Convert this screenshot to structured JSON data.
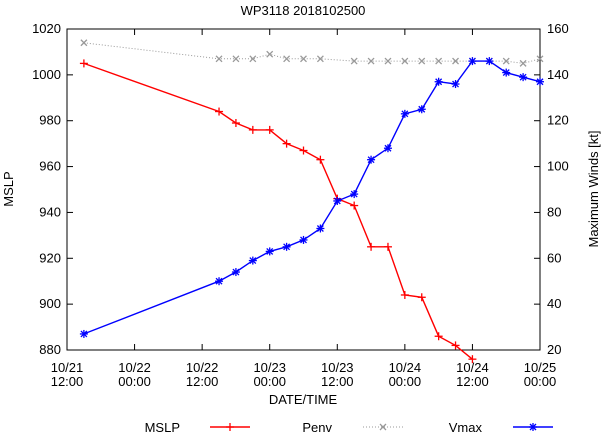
{
  "chart_data": {
    "type": "line",
    "title": "WP3118 2018102500",
    "xlabel": "DATE/TIME",
    "ylabel_left": "MSLP",
    "ylabel_right": "Maximum Winds [kt]",
    "x_ticks": [
      {
        "t": 0,
        "line1": "10/21",
        "line2": "12:00"
      },
      {
        "t": 12,
        "line1": "10/22",
        "line2": "00:00"
      },
      {
        "t": 24,
        "line1": "10/22",
        "line2": "12:00"
      },
      {
        "t": 36,
        "line1": "10/23",
        "line2": "00:00"
      },
      {
        "t": 48,
        "line1": "10/23",
        "line2": "12:00"
      },
      {
        "t": 60,
        "line1": "10/24",
        "line2": "00:00"
      },
      {
        "t": 72,
        "line1": "10/24",
        "line2": "12:00"
      },
      {
        "t": 84,
        "line1": "10/25",
        "line2": "00:00"
      }
    ],
    "xlim": [
      0,
      84
    ],
    "ylim_left": [
      880,
      1020
    ],
    "yticks_left": [
      880,
      900,
      920,
      940,
      960,
      980,
      1000,
      1020
    ],
    "ylim_right": [
      20,
      160
    ],
    "yticks_right": [
      20,
      40,
      60,
      80,
      100,
      120,
      140,
      160
    ],
    "legend_placement": "bottom",
    "series": [
      {
        "name": "MSLP",
        "axis": "left",
        "color": "#ff0000",
        "marker": "plus",
        "x": [
          3,
          27,
          30,
          33,
          36,
          39,
          42,
          45,
          48,
          51,
          54,
          57,
          60,
          63,
          66,
          69,
          72
        ],
        "y": [
          1005,
          984,
          979,
          976,
          976,
          970,
          967,
          963,
          946,
          943,
          925,
          925,
          904,
          903,
          886,
          882,
          876
        ]
      },
      {
        "name": "Penv",
        "axis": "left",
        "color": "#999999",
        "marker": "x",
        "dotted": true,
        "x": [
          3,
          27,
          30,
          33,
          36,
          39,
          42,
          45,
          51,
          54,
          57,
          60,
          63,
          66,
          69,
          72,
          75,
          78,
          81,
          84
        ],
        "y": [
          1014,
          1007,
          1007,
          1007,
          1009,
          1007,
          1007,
          1007,
          1006,
          1006,
          1006,
          1006,
          1006,
          1006,
          1006,
          1006,
          1006,
          1006,
          1005,
          1007
        ]
      },
      {
        "name": "Vmax",
        "axis": "right",
        "color": "#0000ff",
        "marker": "star",
        "x": [
          3,
          27,
          30,
          33,
          36,
          39,
          42,
          45,
          48,
          51,
          54,
          57,
          60,
          63,
          66,
          69,
          72,
          75,
          78,
          81,
          84
        ],
        "y": [
          27,
          50,
          54,
          59,
          63,
          65,
          68,
          73,
          85,
          88,
          103,
          108,
          123,
          125,
          137,
          136,
          146,
          146,
          141,
          139,
          137
        ]
      }
    ]
  }
}
